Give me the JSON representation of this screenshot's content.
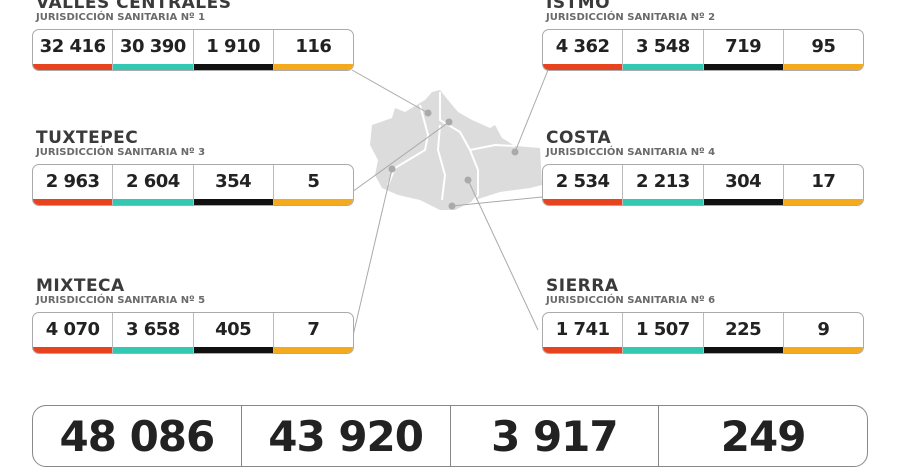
{
  "colors": {
    "cases": "#e8431f",
    "recovered": "#33c8b4",
    "active": "#111111",
    "deaths": "#f5a91d"
  },
  "regions": [
    {
      "name": "VALLES CENTRALES",
      "jurisdiction": "JURISDICCIÓN SANITARIA Nº 1",
      "values": [
        "32 416",
        "30 390",
        "1 910",
        "116"
      ]
    },
    {
      "name": "ISTMO",
      "jurisdiction": "JURISDICCIÓN SANITARIA Nº 2",
      "values": [
        "4 362",
        "3 548",
        "719",
        "95"
      ]
    },
    {
      "name": "TUXTEPEC",
      "jurisdiction": "JURISDICCIÓN SANITARIA Nº 3",
      "values": [
        "2 963",
        "2 604",
        "354",
        "5"
      ]
    },
    {
      "name": "COSTA",
      "jurisdiction": "JURISDICCIÓN SANITARIA Nº 4",
      "values": [
        "2 534",
        "2 213",
        "304",
        "17"
      ]
    },
    {
      "name": "MIXTECA",
      "jurisdiction": "JURISDICCIÓN SANITARIA Nº 5",
      "values": [
        "4 070",
        "3 658",
        "405",
        "7"
      ]
    },
    {
      "name": "SIERRA",
      "jurisdiction": "JURISDICCIÓN SANITARIA Nº 6",
      "values": [
        "1 741",
        "1 507",
        "225",
        "9"
      ]
    }
  ],
  "totals": [
    "48 086",
    "43 920",
    "3 917",
    "249"
  ]
}
